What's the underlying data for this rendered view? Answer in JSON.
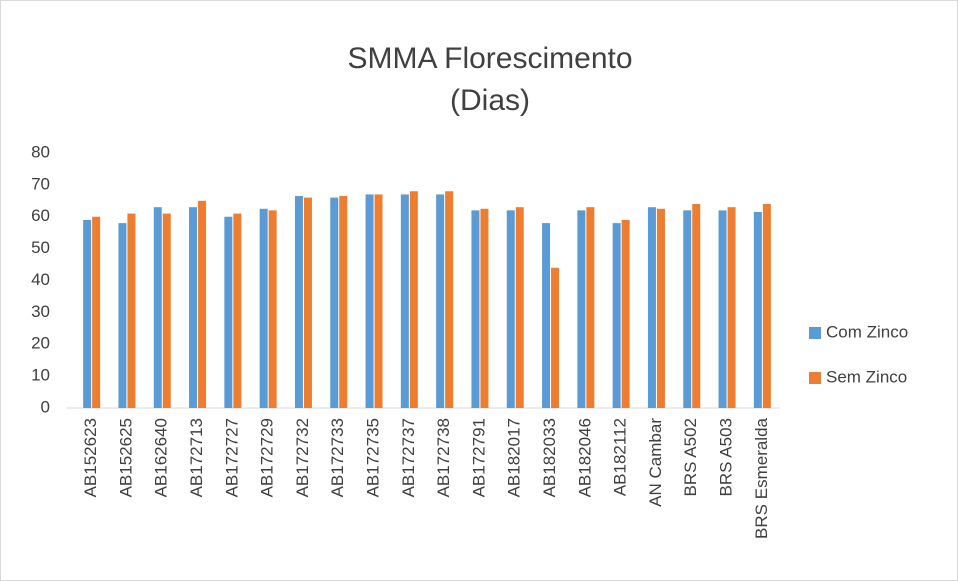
{
  "chart_data": {
    "type": "bar",
    "title": "SMMA Florescimento",
    "subtitle": "(Dias)",
    "categories": [
      "AB152623",
      "AB152625",
      "AB162640",
      "AB172713",
      "AB172727",
      "AB172729",
      "AB172732",
      "AB172733",
      "AB172735",
      "AB172737",
      "AB172738",
      "AB172791",
      "AB182017",
      "AB182033",
      "AB182046",
      "AB182112",
      "AN Cambar",
      "BRS A502",
      "BRS A503",
      "BRS Esmeralda"
    ],
    "series": [
      {
        "name": "Com Zinco",
        "color": "#5b9bd5",
        "values": [
          59,
          58,
          63,
          63,
          60,
          62.5,
          66.5,
          66,
          67,
          67,
          67,
          62,
          62,
          58,
          62,
          58,
          63,
          62,
          62,
          61.5
        ]
      },
      {
        "name": "Sem Zinco",
        "color": "#ed7d31",
        "values": [
          60,
          61,
          61,
          65,
          61,
          62,
          66,
          66.5,
          67,
          68,
          68,
          62.5,
          63,
          44,
          63,
          59,
          62.5,
          64,
          63,
          64
        ]
      }
    ],
    "ylim": [
      0,
      80
    ],
    "yticks": [
      0,
      10,
      20,
      30,
      40,
      50,
      60,
      70,
      80
    ],
    "grid": false,
    "legend": "right"
  }
}
